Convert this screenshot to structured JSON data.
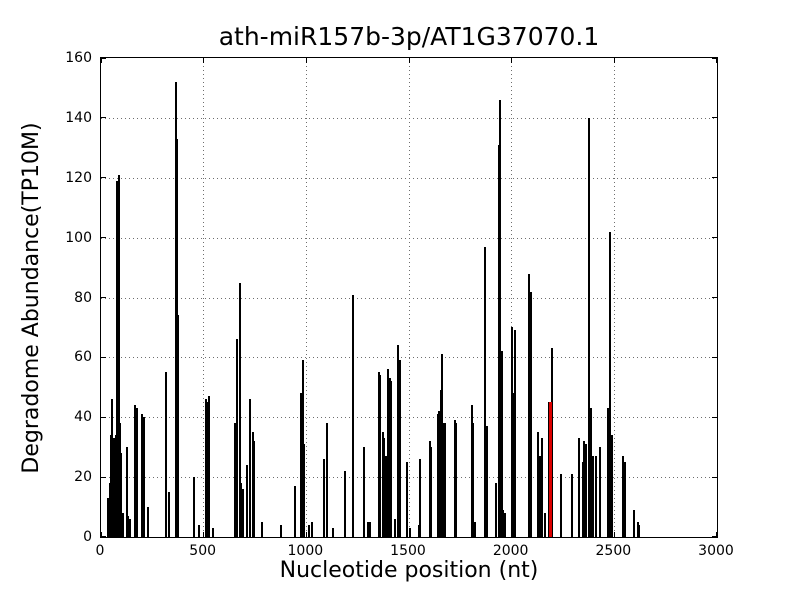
{
  "chart_data": {
    "type": "bar",
    "title": "ath-miR157b-3p/AT1G37070.1",
    "xlabel": "Nucleotide position (nt)",
    "ylabel": "Degradome Abundance(TP10M)",
    "xlim": [
      0,
      3000
    ],
    "ylim": [
      0,
      160
    ],
    "x_ticks": [
      0,
      500,
      1000,
      1500,
      2000,
      2500,
      3000
    ],
    "y_ticks": [
      0,
      20,
      40,
      60,
      80,
      100,
      120,
      140,
      160
    ],
    "grid": "dotted",
    "legend": "none",
    "bar_color": "#000000",
    "highlight_color": "#dd0000",
    "bars": [
      [
        35,
        13
      ],
      [
        42,
        18
      ],
      [
        47,
        34
      ],
      [
        53,
        46
      ],
      [
        64,
        33
      ],
      [
        71,
        34
      ],
      [
        80,
        119
      ],
      [
        86,
        121
      ],
      [
        93,
        38
      ],
      [
        99,
        28
      ],
      [
        108,
        8
      ],
      [
        126,
        30
      ],
      [
        133,
        7
      ],
      [
        142,
        6
      ],
      [
        168,
        44
      ],
      [
        176,
        43
      ],
      [
        202,
        41
      ],
      [
        210,
        40
      ],
      [
        230,
        10
      ],
      [
        318,
        55
      ],
      [
        330,
        15
      ],
      [
        364,
        152
      ],
      [
        370,
        133
      ],
      [
        376,
        74
      ],
      [
        453,
        20
      ],
      [
        477,
        4
      ],
      [
        512,
        46
      ],
      [
        519,
        45
      ],
      [
        528,
        47
      ],
      [
        545,
        3
      ],
      [
        652,
        38
      ],
      [
        663,
        66
      ],
      [
        676,
        85
      ],
      [
        684,
        18
      ],
      [
        691,
        16
      ],
      [
        713,
        24
      ],
      [
        727,
        46
      ],
      [
        738,
        35
      ],
      [
        747,
        32
      ],
      [
        785,
        5
      ],
      [
        877,
        4
      ],
      [
        947,
        17
      ],
      [
        975,
        48
      ],
      [
        982,
        59
      ],
      [
        989,
        31
      ],
      [
        1015,
        4
      ],
      [
        1030,
        5
      ],
      [
        1084,
        26
      ],
      [
        1100,
        38
      ],
      [
        1130,
        3
      ],
      [
        1190,
        22
      ],
      [
        1226,
        81
      ],
      [
        1283,
        30
      ],
      [
        1300,
        5
      ],
      [
        1308,
        5
      ],
      [
        1352,
        55
      ],
      [
        1360,
        54
      ],
      [
        1372,
        35
      ],
      [
        1380,
        33
      ],
      [
        1388,
        27
      ],
      [
        1398,
        56
      ],
      [
        1406,
        53
      ],
      [
        1413,
        52
      ],
      [
        1430,
        6
      ],
      [
        1448,
        64
      ],
      [
        1456,
        59
      ],
      [
        1490,
        25
      ],
      [
        1505,
        3
      ],
      [
        1548,
        4
      ],
      [
        1556,
        26
      ],
      [
        1600,
        32
      ],
      [
        1608,
        30
      ],
      [
        1640,
        41
      ],
      [
        1648,
        42
      ],
      [
        1655,
        49
      ],
      [
        1662,
        61
      ],
      [
        1670,
        38
      ],
      [
        1677,
        38
      ],
      [
        1722,
        39
      ],
      [
        1730,
        38
      ],
      [
        1805,
        44
      ],
      [
        1812,
        38
      ],
      [
        1820,
        5
      ],
      [
        1869,
        97
      ],
      [
        1878,
        37
      ],
      [
        1922,
        18
      ],
      [
        1936,
        131
      ],
      [
        1944,
        146
      ],
      [
        1952,
        62
      ],
      [
        1960,
        9
      ],
      [
        1968,
        8
      ],
      [
        2004,
        70
      ],
      [
        2011,
        48
      ],
      [
        2018,
        69
      ],
      [
        2086,
        88
      ],
      [
        2095,
        82
      ],
      [
        2128,
        35
      ],
      [
        2139,
        27
      ],
      [
        2149,
        33
      ],
      [
        2160,
        8
      ],
      [
        2181,
        45
      ],
      [
        2196,
        63
      ],
      [
        2242,
        21
      ],
      [
        2293,
        21
      ],
      [
        2327,
        33
      ],
      [
        2345,
        25
      ],
      [
        2354,
        32
      ],
      [
        2364,
        31
      ],
      [
        2376,
        140
      ],
      [
        2386,
        43
      ],
      [
        2398,
        27
      ],
      [
        2410,
        27
      ],
      [
        2432,
        30
      ],
      [
        2470,
        43
      ],
      [
        2481,
        102
      ],
      [
        2489,
        34
      ],
      [
        2540,
        27
      ],
      [
        2551,
        25
      ],
      [
        2594,
        9
      ],
      [
        2614,
        5
      ],
      [
        2622,
        4
      ]
    ],
    "highlight_bar": {
      "x": 2188,
      "v": 45
    }
  }
}
